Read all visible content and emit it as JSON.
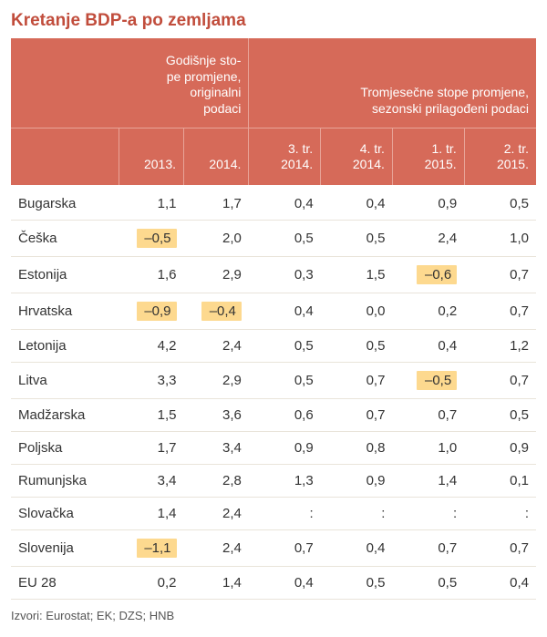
{
  "title_text": "Kretanje BDP-a po zemljama",
  "title_color": "#c14d3c",
  "header_bg": "#d66a59",
  "header_divider": "#e8a498",
  "row_divider": "#e9e4da",
  "highlight_bg": "#fdd98f",
  "group_headers": {
    "annual": "Godišnje sto-\npe promjene,\noriginalni\npodaci",
    "quarterly": "Tromjesečne stope promjene,\nsezonski prilagođeni podaci"
  },
  "columns": [
    "2013.",
    "2014.",
    "3. tr.\n2014.",
    "4. tr.\n2014.",
    "1. tr.\n2015.",
    "2. tr.\n2015."
  ],
  "rows": [
    {
      "country": "Bugarska",
      "vals": [
        "1,1",
        "1,7",
        "0,4",
        "0,4",
        "0,9",
        "0,5"
      ],
      "hl": []
    },
    {
      "country": "Češka",
      "vals": [
        "–0,5",
        "2,0",
        "0,5",
        "0,5",
        "2,4",
        "1,0"
      ],
      "hl": [
        0
      ]
    },
    {
      "country": "Estonija",
      "vals": [
        "1,6",
        "2,9",
        "0,3",
        "1,5",
        "–0,6",
        "0,7"
      ],
      "hl": [
        4
      ]
    },
    {
      "country": "Hrvatska",
      "vals": [
        "–0,9",
        "–0,4",
        "0,4",
        "0,0",
        "0,2",
        "0,7"
      ],
      "hl": [
        0,
        1
      ]
    },
    {
      "country": "Letonija",
      "vals": [
        "4,2",
        "2,4",
        "0,5",
        "0,5",
        "0,4",
        "1,2"
      ],
      "hl": []
    },
    {
      "country": "Litva",
      "vals": [
        "3,3",
        "2,9",
        "0,5",
        "0,7",
        "–0,5",
        "0,7"
      ],
      "hl": [
        4
      ]
    },
    {
      "country": "Madžarska",
      "vals": [
        "1,5",
        "3,6",
        "0,6",
        "0,7",
        "0,7",
        "0,5"
      ],
      "hl": []
    },
    {
      "country": "Poljska",
      "vals": [
        "1,7",
        "3,4",
        "0,9",
        "0,8",
        "1,0",
        "0,9"
      ],
      "hl": []
    },
    {
      "country": "Rumunjska",
      "vals": [
        "3,4",
        "2,8",
        "1,3",
        "0,9",
        "1,4",
        "0,1"
      ],
      "hl": []
    },
    {
      "country": "Slovačka",
      "vals": [
        "1,4",
        "2,4",
        ":",
        ":",
        ":",
        ":"
      ],
      "hl": []
    },
    {
      "country": "Slovenija",
      "vals": [
        "–1,1",
        "2,4",
        "0,7",
        "0,4",
        "0,7",
        "0,7"
      ],
      "hl": [
        0
      ]
    },
    {
      "country": "EU 28",
      "vals": [
        "0,2",
        "1,4",
        "0,4",
        "0,5",
        "0,5",
        "0,4"
      ],
      "hl": []
    }
  ],
  "source": "Izvori: Eurostat; EK; DZS; HNB"
}
